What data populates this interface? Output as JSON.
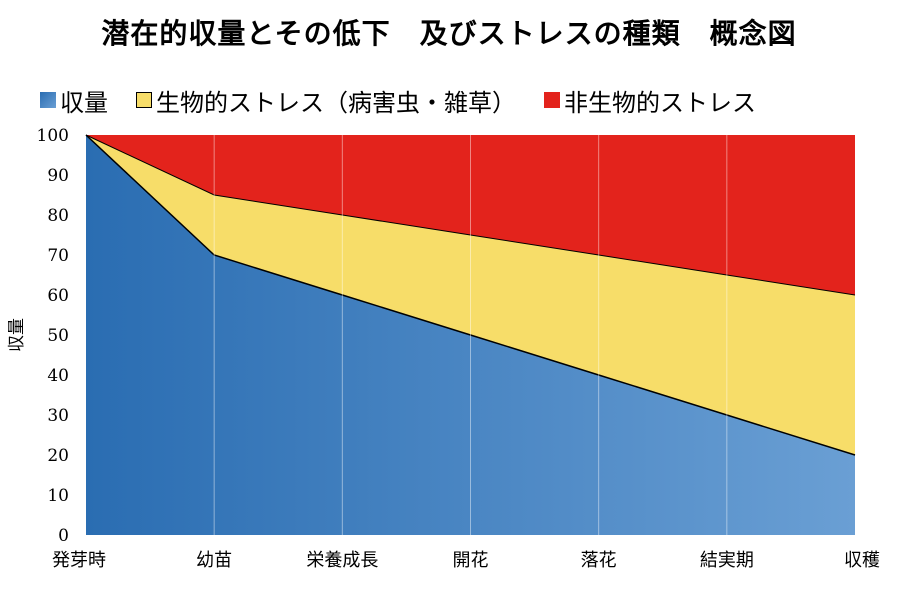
{
  "title": "潜在的収量とその低下　及びストレスの種類　概念図",
  "colors": {
    "yield_gradient_start": "#2a6db2",
    "yield_gradient_end": "#6a9fd4",
    "biotic": "#f7dd69",
    "abiotic": "#e3231c",
    "gridline": "#ffffff"
  },
  "chart_data": {
    "type": "area",
    "stacked": true,
    "title": "潜在的収量とその低下　及びストレスの種類　概念図",
    "xlabel": "",
    "ylabel": "収量",
    "ylim": [
      0,
      100
    ],
    "yticks": [
      0,
      10,
      20,
      30,
      40,
      50,
      60,
      70,
      80,
      90,
      100
    ],
    "categories": [
      "発芽時",
      "幼苗",
      "栄養成長",
      "開花",
      "落花",
      "結実期",
      "収穫"
    ],
    "grid": "vertical",
    "legend_position": "top-left",
    "series": [
      {
        "name": "収量",
        "values": [
          100,
          70,
          60,
          50,
          40,
          30,
          20
        ]
      },
      {
        "name": "生物的ストレス（病害虫・雑草）",
        "values": [
          0,
          15,
          20,
          25,
          30,
          35,
          40
        ]
      },
      {
        "name": "非生物的ストレス",
        "values": [
          0,
          15,
          20,
          25,
          30,
          35,
          40
        ]
      }
    ]
  }
}
